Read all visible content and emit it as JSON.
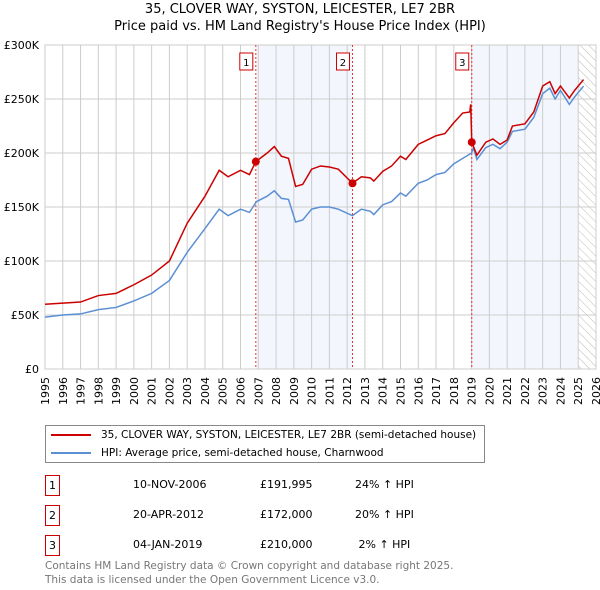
{
  "chart_data": {
    "type": "line",
    "title": "35, CLOVER WAY, SYSTON, LEICESTER, LE7 2BR",
    "subtitle": "Price paid vs. HM Land Registry's House Price Index (HPI)",
    "xlim": [
      1995,
      2026
    ],
    "ylim": [
      0,
      300000
    ],
    "yticks": [
      {
        "v": 0,
        "label": "£0"
      },
      {
        "v": 50000,
        "label": "£50K"
      },
      {
        "v": 100000,
        "label": "£100K"
      },
      {
        "v": 150000,
        "label": "£150K"
      },
      {
        "v": 200000,
        "label": "£200K"
      },
      {
        "v": 250000,
        "label": "£250K"
      },
      {
        "v": 300000,
        "label": "£300K"
      }
    ],
    "xticks": [
      1995,
      1996,
      1997,
      1998,
      1999,
      2000,
      2001,
      2002,
      2003,
      2004,
      2005,
      2006,
      2007,
      2008,
      2009,
      2010,
      2011,
      2012,
      2013,
      2014,
      2015,
      2016,
      2017,
      2018,
      2019,
      2020,
      2021,
      2022,
      2023,
      2024,
      2025,
      2026
    ],
    "grid": true,
    "series": [
      {
        "name": "35, CLOVER WAY, SYSTON, LEICESTER, LE7 2BR (semi-detached house)",
        "color": "#cc0000",
        "x": [
          1995,
          1996,
          1997,
          1998,
          1999,
          2000,
          2001,
          2002,
          2003,
          2004,
          2004.8,
          2005.3,
          2006,
          2006.5,
          2006.86,
          2007.5,
          2007.9,
          2008.3,
          2008.7,
          2009.1,
          2009.5,
          2010,
          2010.5,
          2011,
          2011.5,
          2012.3,
          2012.8,
          2013.3,
          2013.5,
          2014,
          2014.5,
          2015,
          2015.3,
          2016,
          2016.5,
          2017,
          2017.5,
          2018,
          2018.5,
          2018.9,
          2018.95,
          2019.01,
          2019.3,
          2019.8,
          2020.2,
          2020.6,
          2021,
          2021.3,
          2022,
          2022.5,
          2023,
          2023.4,
          2023.7,
          2024,
          2024.5,
          2024.8,
          2025.3
        ],
        "y": [
          60000,
          61000,
          62000,
          68000,
          70000,
          78000,
          87000,
          100000,
          135000,
          160000,
          184000,
          178000,
          184000,
          180000,
          192000,
          200000,
          206000,
          197000,
          195000,
          169000,
          171000,
          185000,
          188000,
          187000,
          185000,
          172000,
          178000,
          177000,
          174000,
          183000,
          188000,
          197000,
          194000,
          208000,
          212000,
          216000,
          218000,
          228000,
          237000,
          238000,
          245000,
          210000,
          198000,
          210000,
          213000,
          208000,
          212000,
          225000,
          227000,
          238000,
          262000,
          266000,
          255000,
          262000,
          251000,
          258000,
          268000
        ]
      },
      {
        "name": "HPI: Average price, semi-detached house, Charnwood",
        "color": "#5b8fd4",
        "x": [
          1995,
          1996,
          1997,
          1998,
          1999,
          2000,
          2001,
          2002,
          2003,
          2004,
          2004.8,
          2005.3,
          2006,
          2006.5,
          2006.9,
          2007.5,
          2007.9,
          2008.3,
          2008.7,
          2009.1,
          2009.5,
          2010,
          2010.5,
          2011,
          2011.5,
          2012.3,
          2012.8,
          2013.3,
          2013.5,
          2014,
          2014.5,
          2015,
          2015.3,
          2016,
          2016.5,
          2017,
          2017.5,
          2018,
          2018.5,
          2019,
          2019.1,
          2019.3,
          2019.8,
          2020.2,
          2020.6,
          2021,
          2021.3,
          2022,
          2022.5,
          2023,
          2023.4,
          2023.7,
          2024,
          2024.5,
          2024.8,
          2025.3
        ],
        "y": [
          48000,
          50000,
          51000,
          55000,
          57000,
          63000,
          70000,
          82000,
          108000,
          130000,
          148000,
          142000,
          148000,
          145000,
          155000,
          160000,
          165000,
          158000,
          157000,
          136000,
          138000,
          148000,
          150000,
          150000,
          148000,
          142000,
          148000,
          146000,
          143000,
          152000,
          155000,
          163000,
          160000,
          172000,
          175000,
          180000,
          182000,
          190000,
          195000,
          200000,
          205000,
          194000,
          205000,
          208000,
          204000,
          210000,
          220000,
          222000,
          233000,
          255000,
          260000,
          250000,
          258000,
          245000,
          252000,
          262000
        ]
      }
    ],
    "sales": [
      {
        "num": "1",
        "x": 2006.86,
        "y": 191995,
        "date": "10-NOV-2006",
        "price": "£191,995",
        "hpi": "24% ↑ HPI"
      },
      {
        "num": "2",
        "x": 2012.3,
        "y": 172000,
        "date": "20-APR-2012",
        "price": "£172,000",
        "hpi": "20% ↑ HPI"
      },
      {
        "num": "3",
        "x": 2019.01,
        "y": 210000,
        "date": "04-JAN-2019",
        "price": "£210,000",
        "hpi": " 2% ↑ HPI"
      }
    ],
    "shaded": [
      [
        2006.86,
        2012.3
      ],
      [
        2019.01,
        2025.0
      ]
    ],
    "hatched_from": 2025.0
  },
  "footer": {
    "line1": "Contains HM Land Registry data © Crown copyright and database right 2025.",
    "line2": "This data is licensed under the Open Government Licence v3.0."
  }
}
